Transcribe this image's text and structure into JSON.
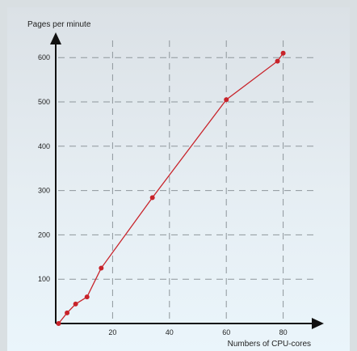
{
  "chart_data": {
    "type": "line",
    "title": "",
    "xlabel": "Numbers of CPU-cores",
    "ylabel": "Pages per minute",
    "xlim": [
      0,
      90
    ],
    "ylim": [
      0,
      640
    ],
    "x_ticks": [
      20,
      40,
      60,
      80
    ],
    "y_ticks": [
      100,
      200,
      300,
      400,
      500,
      600
    ],
    "x_tick_labels": [
      "20",
      "40",
      "60",
      "80"
    ],
    "y_tick_labels": [
      "100",
      "200",
      "300",
      "400",
      "500",
      "600"
    ],
    "grid": true,
    "colors": {
      "series": "#c8232a",
      "axis": "#111111",
      "grid": "#8e969b"
    },
    "series": [
      {
        "x": [
          1,
          4,
          7,
          11,
          16,
          34,
          60,
          78,
          80
        ],
        "y": [
          0,
          24,
          44,
          60,
          125,
          284,
          505,
          592,
          610
        ]
      }
    ]
  }
}
